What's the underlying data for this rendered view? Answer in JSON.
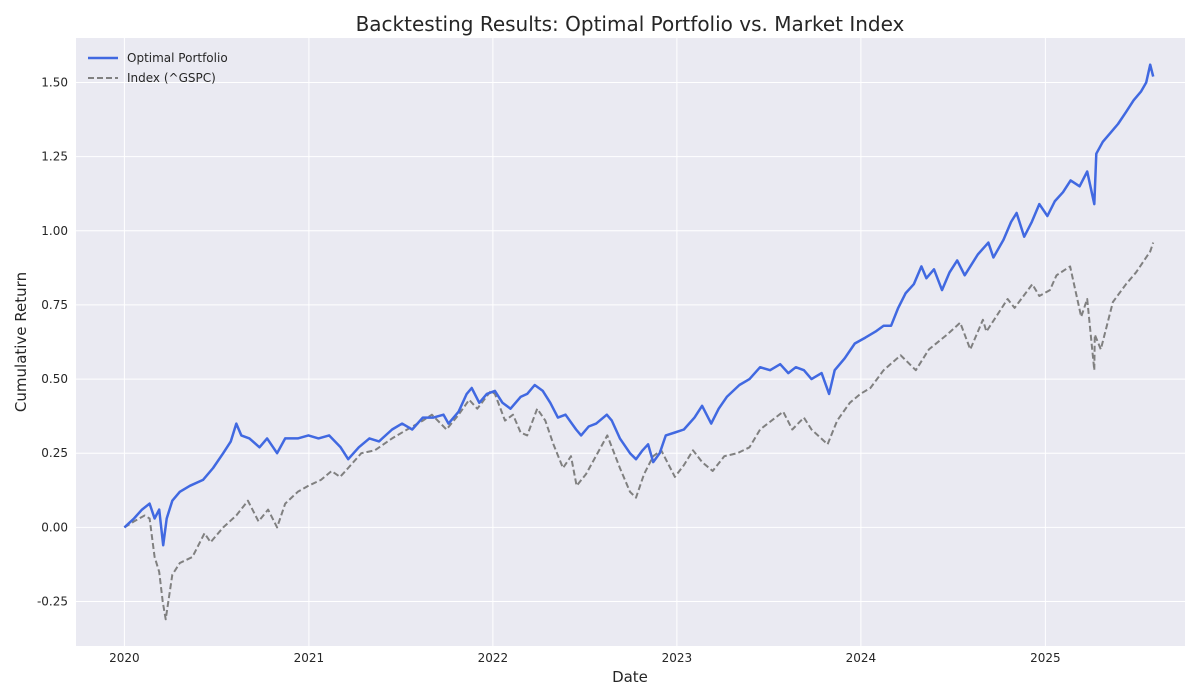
{
  "chart_data": {
    "type": "line",
    "title": "Backtesting Results: Optimal Portfolio vs. Market Index",
    "xlabel": "Date",
    "ylabel": "Cumulative Return",
    "xlim": [
      "2019-09-27",
      "2025-10-05"
    ],
    "ylim": [
      -0.4,
      1.65
    ],
    "x_ticks": [
      "2020",
      "2021",
      "2022",
      "2023",
      "2024",
      "2025"
    ],
    "y_ticks": [
      "-0.25",
      "0.00",
      "0.25",
      "0.50",
      "0.75",
      "1.00",
      "1.25",
      "1.50"
    ],
    "grid": true,
    "legend_position": "top-left",
    "series": [
      {
        "name": "Optimal Portfolio",
        "color": "#4169e1",
        "style": "solid",
        "points": [
          [
            "2020-01-01",
            0.0
          ],
          [
            "2020-01-20",
            0.03
          ],
          [
            "2020-02-05",
            0.06
          ],
          [
            "2020-02-20",
            0.08
          ],
          [
            "2020-03-01",
            0.03
          ],
          [
            "2020-03-10",
            0.06
          ],
          [
            "2020-03-18",
            -0.06
          ],
          [
            "2020-03-25",
            0.03
          ],
          [
            "2020-04-05",
            0.09
          ],
          [
            "2020-04-20",
            0.12
          ],
          [
            "2020-05-10",
            0.14
          ],
          [
            "2020-06-05",
            0.16
          ],
          [
            "2020-06-25",
            0.2
          ],
          [
            "2020-07-15",
            0.25
          ],
          [
            "2020-07-30",
            0.29
          ],
          [
            "2020-08-10",
            0.35
          ],
          [
            "2020-08-20",
            0.31
          ],
          [
            "2020-09-05",
            0.3
          ],
          [
            "2020-09-25",
            0.27
          ],
          [
            "2020-10-10",
            0.3
          ],
          [
            "2020-10-30",
            0.25
          ],
          [
            "2020-11-15",
            0.3
          ],
          [
            "2020-12-10",
            0.3
          ],
          [
            "2020-12-31",
            0.31
          ],
          [
            "2021-01-20",
            0.3
          ],
          [
            "2021-02-10",
            0.31
          ],
          [
            "2021-03-05",
            0.27
          ],
          [
            "2021-03-20",
            0.23
          ],
          [
            "2021-04-10",
            0.27
          ],
          [
            "2021-05-01",
            0.3
          ],
          [
            "2021-05-20",
            0.29
          ],
          [
            "2021-06-15",
            0.33
          ],
          [
            "2021-07-05",
            0.35
          ],
          [
            "2021-07-25",
            0.33
          ],
          [
            "2021-08-15",
            0.37
          ],
          [
            "2021-09-05",
            0.37
          ],
          [
            "2021-09-25",
            0.38
          ],
          [
            "2021-10-05",
            0.35
          ],
          [
            "2021-10-25",
            0.39
          ],
          [
            "2021-11-10",
            0.45
          ],
          [
            "2021-11-20",
            0.47
          ],
          [
            "2021-12-05",
            0.42
          ],
          [
            "2021-12-20",
            0.45
          ],
          [
            "2022-01-05",
            0.46
          ],
          [
            "2022-01-20",
            0.42
          ],
          [
            "2022-02-05",
            0.4
          ],
          [
            "2022-02-25",
            0.44
          ],
          [
            "2022-03-10",
            0.45
          ],
          [
            "2022-03-25",
            0.48
          ],
          [
            "2022-04-10",
            0.46
          ],
          [
            "2022-04-25",
            0.42
          ],
          [
            "2022-05-10",
            0.37
          ],
          [
            "2022-05-25",
            0.38
          ],
          [
            "2022-06-15",
            0.33
          ],
          [
            "2022-06-25",
            0.31
          ],
          [
            "2022-07-10",
            0.34
          ],
          [
            "2022-07-25",
            0.35
          ],
          [
            "2022-08-15",
            0.38
          ],
          [
            "2022-08-25",
            0.36
          ],
          [
            "2022-09-10",
            0.3
          ],
          [
            "2022-09-30",
            0.25
          ],
          [
            "2022-10-12",
            0.23
          ],
          [
            "2022-10-25",
            0.26
          ],
          [
            "2022-11-05",
            0.28
          ],
          [
            "2022-11-15",
            0.22
          ],
          [
            "2022-11-28",
            0.25
          ],
          [
            "2022-12-10",
            0.31
          ],
          [
            "2022-12-28",
            0.32
          ],
          [
            "2023-01-15",
            0.33
          ],
          [
            "2023-02-05",
            0.37
          ],
          [
            "2023-02-20",
            0.41
          ],
          [
            "2023-03-10",
            0.35
          ],
          [
            "2023-03-25",
            0.4
          ],
          [
            "2023-04-10",
            0.44
          ],
          [
            "2023-05-05",
            0.48
          ],
          [
            "2023-05-25",
            0.5
          ],
          [
            "2023-06-15",
            0.54
          ],
          [
            "2023-07-05",
            0.53
          ],
          [
            "2023-07-25",
            0.55
          ],
          [
            "2023-08-10",
            0.52
          ],
          [
            "2023-08-25",
            0.54
          ],
          [
            "2023-09-10",
            0.53
          ],
          [
            "2023-09-25",
            0.5
          ],
          [
            "2023-10-15",
            0.52
          ],
          [
            "2023-10-30",
            0.45
          ],
          [
            "2023-11-10",
            0.53
          ],
          [
            "2023-11-30",
            0.57
          ],
          [
            "2023-12-20",
            0.62
          ],
          [
            "2024-01-10",
            0.64
          ],
          [
            "2024-01-30",
            0.66
          ],
          [
            "2024-02-15",
            0.68
          ],
          [
            "2024-03-01",
            0.68
          ],
          [
            "2024-03-15",
            0.74
          ],
          [
            "2024-03-30",
            0.79
          ],
          [
            "2024-04-15",
            0.82
          ],
          [
            "2024-04-30",
            0.88
          ],
          [
            "2024-05-10",
            0.84
          ],
          [
            "2024-05-25",
            0.87
          ],
          [
            "2024-06-10",
            0.8
          ],
          [
            "2024-06-25",
            0.86
          ],
          [
            "2024-07-10",
            0.9
          ],
          [
            "2024-07-25",
            0.85
          ],
          [
            "2024-08-05",
            0.88
          ],
          [
            "2024-08-20",
            0.92
          ],
          [
            "2024-09-10",
            0.96
          ],
          [
            "2024-09-20",
            0.91
          ],
          [
            "2024-10-10",
            0.97
          ],
          [
            "2024-10-25",
            1.03
          ],
          [
            "2024-11-05",
            1.06
          ],
          [
            "2024-11-20",
            0.98
          ],
          [
            "2024-12-05",
            1.03
          ],
          [
            "2024-12-20",
            1.09
          ],
          [
            "2025-01-05",
            1.05
          ],
          [
            "2025-01-20",
            1.1
          ],
          [
            "2025-02-05",
            1.13
          ],
          [
            "2025-02-20",
            1.17
          ],
          [
            "2025-03-10",
            1.15
          ],
          [
            "2025-03-25",
            1.2
          ],
          [
            "2025-04-03",
            1.13
          ],
          [
            "2025-04-08",
            1.09
          ],
          [
            "2025-04-12",
            1.26
          ],
          [
            "2025-04-25",
            1.3
          ],
          [
            "2025-05-10",
            1.33
          ],
          [
            "2025-05-25",
            1.36
          ],
          [
            "2025-06-10",
            1.4
          ],
          [
            "2025-06-25",
            1.44
          ],
          [
            "2025-07-10",
            1.47
          ],
          [
            "2025-07-20",
            1.5
          ],
          [
            "2025-07-28",
            1.56
          ],
          [
            "2025-08-03",
            1.52
          ]
        ]
      },
      {
        "name": "Index (^GSPC)",
        "color": "#808080",
        "style": "dashed",
        "points": [
          [
            "2020-01-01",
            0.0
          ],
          [
            "2020-01-20",
            0.02
          ],
          [
            "2020-02-10",
            0.04
          ],
          [
            "2020-02-20",
            0.03
          ],
          [
            "2020-03-01",
            -0.1
          ],
          [
            "2020-03-10",
            -0.15
          ],
          [
            "2020-03-17",
            -0.25
          ],
          [
            "2020-03-23",
            -0.31
          ],
          [
            "2020-04-05",
            -0.16
          ],
          [
            "2020-04-20",
            -0.12
          ],
          [
            "2020-05-15",
            -0.1
          ],
          [
            "2020-06-08",
            -0.02
          ],
          [
            "2020-06-20",
            -0.05
          ],
          [
            "2020-07-15",
            0.0
          ],
          [
            "2020-08-10",
            0.04
          ],
          [
            "2020-09-02",
            0.09
          ],
          [
            "2020-09-23",
            0.02
          ],
          [
            "2020-10-12",
            0.06
          ],
          [
            "2020-10-30",
            0.0
          ],
          [
            "2020-11-15",
            0.08
          ],
          [
            "2020-12-10",
            0.12
          ],
          [
            "2020-12-31",
            0.14
          ],
          [
            "2021-01-25",
            0.16
          ],
          [
            "2021-02-15",
            0.19
          ],
          [
            "2021-03-04",
            0.17
          ],
          [
            "2021-03-20",
            0.2
          ],
          [
            "2021-04-15",
            0.25
          ],
          [
            "2021-05-12",
            0.26
          ],
          [
            "2021-06-15",
            0.3
          ],
          [
            "2021-07-15",
            0.33
          ],
          [
            "2021-08-15",
            0.36
          ],
          [
            "2021-09-02",
            0.38
          ],
          [
            "2021-10-01",
            0.33
          ],
          [
            "2021-10-25",
            0.38
          ],
          [
            "2021-11-15",
            0.43
          ],
          [
            "2021-12-01",
            0.4
          ],
          [
            "2021-12-28",
            0.46
          ],
          [
            "2022-01-05",
            0.45
          ],
          [
            "2022-01-25",
            0.36
          ],
          [
            "2022-02-10",
            0.38
          ],
          [
            "2022-02-25",
            0.32
          ],
          [
            "2022-03-10",
            0.31
          ],
          [
            "2022-03-30",
            0.4
          ],
          [
            "2022-04-15",
            0.36
          ],
          [
            "2022-05-01",
            0.28
          ],
          [
            "2022-05-20",
            0.2
          ],
          [
            "2022-06-05",
            0.24
          ],
          [
            "2022-06-16",
            0.14
          ],
          [
            "2022-07-05",
            0.18
          ],
          [
            "2022-08-16",
            0.31
          ],
          [
            "2022-09-10",
            0.2
          ],
          [
            "2022-09-30",
            0.12
          ],
          [
            "2022-10-12",
            0.1
          ],
          [
            "2022-10-28",
            0.18
          ],
          [
            "2022-11-15",
            0.24
          ],
          [
            "2022-12-01",
            0.26
          ],
          [
            "2022-12-28",
            0.17
          ],
          [
            "2023-01-15",
            0.21
          ],
          [
            "2023-02-02",
            0.26
          ],
          [
            "2023-02-20",
            0.22
          ],
          [
            "2023-03-13",
            0.19
          ],
          [
            "2023-04-05",
            0.24
          ],
          [
            "2023-05-01",
            0.25
          ],
          [
            "2023-05-25",
            0.27
          ],
          [
            "2023-06-15",
            0.33
          ],
          [
            "2023-07-31",
            0.39
          ],
          [
            "2023-08-18",
            0.33
          ],
          [
            "2023-09-10",
            0.37
          ],
          [
            "2023-09-25",
            0.33
          ],
          [
            "2023-10-27",
            0.28
          ],
          [
            "2023-11-15",
            0.36
          ],
          [
            "2023-12-10",
            0.42
          ],
          [
            "2023-12-31",
            0.45
          ],
          [
            "2024-01-20",
            0.47
          ],
          [
            "2024-02-15",
            0.53
          ],
          [
            "2024-03-20",
            0.58
          ],
          [
            "2024-04-19",
            0.53
          ],
          [
            "2024-05-15",
            0.6
          ],
          [
            "2024-06-20",
            0.65
          ],
          [
            "2024-07-16",
            0.69
          ],
          [
            "2024-08-05",
            0.6
          ],
          [
            "2024-08-30",
            0.7
          ],
          [
            "2024-09-06",
            0.66
          ],
          [
            "2024-10-18",
            0.77
          ],
          [
            "2024-11-01",
            0.74
          ],
          [
            "2024-12-06",
            0.82
          ],
          [
            "2024-12-20",
            0.78
          ],
          [
            "2025-01-10",
            0.8
          ],
          [
            "2025-01-23",
            0.85
          ],
          [
            "2025-02-19",
            0.88
          ],
          [
            "2025-03-13",
            0.71
          ],
          [
            "2025-03-25",
            0.77
          ],
          [
            "2025-04-04",
            0.6
          ],
          [
            "2025-04-08",
            0.53
          ],
          [
            "2025-04-09",
            0.65
          ],
          [
            "2025-04-21",
            0.6
          ],
          [
            "2025-05-15",
            0.76
          ],
          [
            "2025-06-10",
            0.82
          ],
          [
            "2025-06-30",
            0.86
          ],
          [
            "2025-07-28",
            0.93
          ],
          [
            "2025-08-03",
            0.96
          ]
        ]
      }
    ]
  }
}
